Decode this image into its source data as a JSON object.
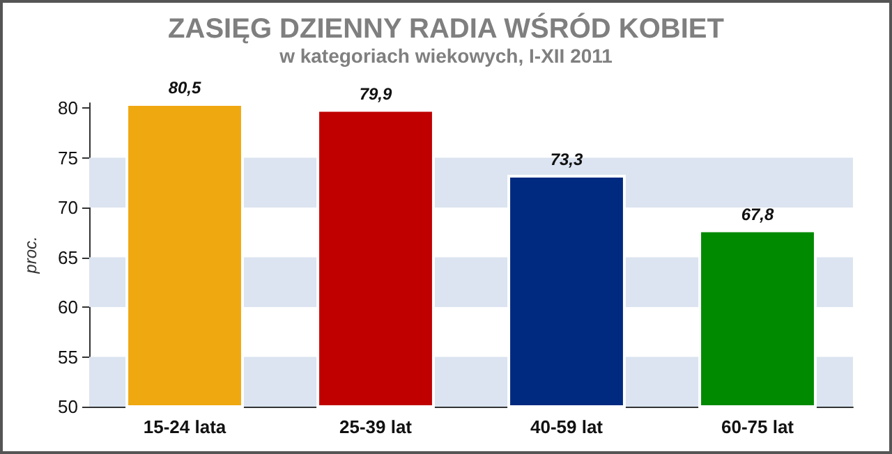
{
  "chart_data": {
    "type": "bar",
    "title": "ZASIĘG DZIENNY RADIA WŚRÓD KOBIET",
    "subtitle": "w kategoriach wiekowych, I-XII 2011",
    "ylabel": "proc.",
    "categories": [
      "15-24 lata",
      "25-39 lat",
      "40-59 lat",
      "60-75 lat"
    ],
    "values": [
      80.5,
      79.9,
      73.3,
      67.8
    ],
    "colors": [
      "#f0a810",
      "#c00000",
      "#002a80",
      "#008a00"
    ],
    "value_labels": [
      "80,5",
      "79,9",
      "73,3",
      "67,8"
    ],
    "ylim": [
      50,
      80.5
    ],
    "yticks": [
      50,
      55,
      60,
      65,
      70,
      75,
      80
    ],
    "bands": [
      {
        "axis": "y",
        "from": 50,
        "to": 55,
        "color": "#dbe4f0"
      },
      {
        "axis": "y",
        "from": 60,
        "to": 65,
        "color": "#dbe4f0"
      },
      {
        "axis": "y",
        "from": 70,
        "to": 75,
        "color": "#dbe4f0"
      }
    ]
  }
}
